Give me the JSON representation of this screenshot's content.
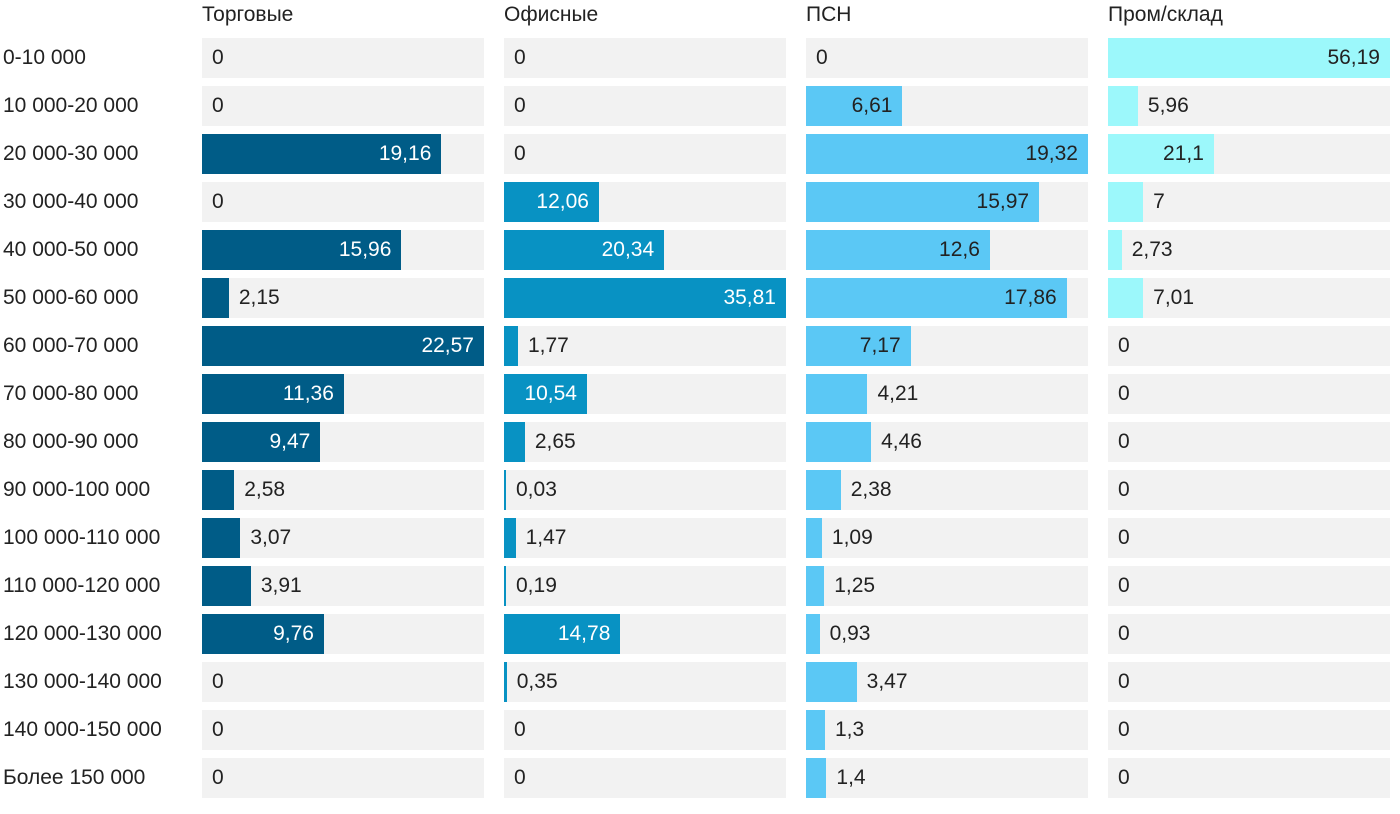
{
  "chart_data": {
    "type": "bar",
    "orientation": "horizontal",
    "layout": "small-multiples",
    "categories": [
      "0-10 000",
      "10 000-20 000",
      "20 000-30 000",
      "30 000-40 000",
      "40 000-50 000",
      "50 000-60 000",
      "60 000-70 000",
      "70 000-80 000",
      "80 000-90 000",
      "90 000-100 000",
      "100 000-110 000",
      "110 000-120 000",
      "120 000-130 000",
      "130 000-140 000",
      "140 000-150 000",
      "Более 150 000"
    ],
    "series": [
      {
        "name": "Торговые",
        "color": "#005c87",
        "label_color_inside": "#ffffff",
        "max": 22.57,
        "values": [
          0,
          0,
          19.16,
          0,
          15.96,
          2.15,
          22.57,
          11.36,
          9.47,
          2.58,
          3.07,
          3.91,
          9.76,
          0,
          0,
          0
        ],
        "labels": [
          "0",
          "0",
          "19,16",
          "0",
          "15,96",
          "2,15",
          "22,57",
          "11,36",
          "9,47",
          "2,58",
          "3,07",
          "3,91",
          "9,76",
          "0",
          "0",
          "0"
        ]
      },
      {
        "name": "Офисные",
        "color": "#0892c3",
        "label_color_inside": "#ffffff",
        "max": 35.81,
        "values": [
          0,
          0,
          0,
          12.06,
          20.34,
          35.81,
          1.77,
          10.54,
          2.65,
          0.03,
          1.47,
          0.19,
          14.78,
          0.35,
          0,
          0
        ],
        "labels": [
          "0",
          "0",
          "0",
          "12,06",
          "20,34",
          "35,81",
          "1,77",
          "10,54",
          "2,65",
          "0,03",
          "1,47",
          "0,19",
          "14,78",
          "0,35",
          "0",
          "0"
        ]
      },
      {
        "name": "ПСН",
        "color": "#5bc8f5",
        "label_color_inside": "#222222",
        "max": 19.32,
        "values": [
          0,
          6.61,
          19.32,
          15.97,
          12.6,
          17.86,
          7.17,
          4.21,
          4.46,
          2.38,
          1.09,
          1.25,
          0.93,
          3.47,
          1.3,
          1.4
        ],
        "labels": [
          "0",
          "6,61",
          "19,32",
          "15,97",
          "12,6",
          "17,86",
          "7,17",
          "4,21",
          "4,46",
          "2,38",
          "1,09",
          "1,25",
          "0,93",
          "3,47",
          "1,3",
          "1,4"
        ]
      },
      {
        "name": "Пром/склад",
        "color": "#9cf8fb",
        "label_color_inside": "#222222",
        "max": 56.19,
        "values": [
          56.19,
          5.96,
          21.1,
          7,
          2.73,
          7.01,
          0,
          0,
          0,
          0,
          0,
          0,
          0,
          0,
          0,
          0
        ],
        "labels": [
          "56,19",
          "5,96",
          "21,1",
          "7",
          "2,73",
          "7,01",
          "0",
          "0",
          "0",
          "0",
          "0",
          "0",
          "0",
          "0",
          "0",
          "0"
        ]
      }
    ],
    "grid": false,
    "legend": "none"
  }
}
